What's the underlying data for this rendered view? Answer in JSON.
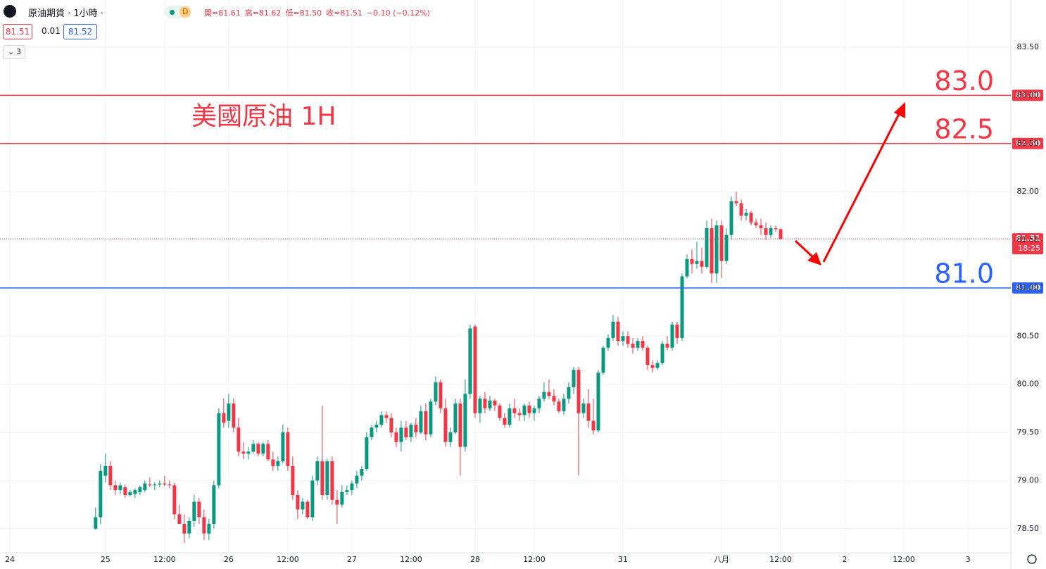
{
  "chart_data": {
    "type": "candlestick",
    "header": {
      "symbol": "原油期貨 · 1小時 ·",
      "badge": "D",
      "ohlc": [
        "開=81.61",
        "高=81.62",
        "低=81.50",
        "收=81.51",
        "−0.10 (−0.12%)"
      ],
      "bid": "81.51",
      "spread": "0.01",
      "ask": "81.52",
      "count": "3"
    },
    "annotation": "美國原油 1H",
    "up_color": "#089981",
    "down_color": "#f23645",
    "xlim": [
      -19.4,
      185.7
    ],
    "xticks": [
      {
        "value": -17.4,
        "label": "24"
      },
      {
        "value": 2,
        "label": "25"
      },
      {
        "value": 14,
        "label": "12:00"
      },
      {
        "value": 27,
        "label": "26"
      },
      {
        "value": 39,
        "label": "12:00"
      },
      {
        "value": 52,
        "label": "27"
      },
      {
        "value": 64,
        "label": "12:00"
      },
      {
        "value": 77,
        "label": "28"
      },
      {
        "value": 89,
        "label": "12:00"
      },
      {
        "value": 107,
        "label": "31"
      },
      {
        "value": 127,
        "label": "八月"
      },
      {
        "value": 139,
        "label": "12:00"
      },
      {
        "value": 152,
        "label": "2"
      },
      {
        "value": 164,
        "label": "12:00"
      },
      {
        "value": 177,
        "label": "3"
      }
    ],
    "ylim": [
      78.25,
      83.99
    ],
    "yticks": [
      {
        "value": 78.5,
        "label": "78.50"
      },
      {
        "value": 79,
        "label": "79.00"
      },
      {
        "value": 79.5,
        "label": "79.50"
      },
      {
        "value": 80,
        "label": "80.00"
      },
      {
        "value": 80.5,
        "label": "80.50"
      },
      {
        "value": 81,
        "label": "81.00"
      },
      {
        "value": 81.5,
        "label": "81.50"
      },
      {
        "value": 82,
        "label": "82.00"
      },
      {
        "value": 82.5,
        "label": "82.50"
      },
      {
        "value": 83,
        "label": "83.00"
      },
      {
        "value": 83.5,
        "label": "83.50"
      }
    ],
    "hlines": [
      {
        "value": 83,
        "label": "83.0",
        "tag": "83.00",
        "color": "#f23645"
      },
      {
        "value": 82.5,
        "label": "82.5",
        "tag": "82.50",
        "color": "#f23645"
      },
      {
        "value": 81,
        "label": "81.0",
        "tag": "81.00",
        "color": "#2962ff"
      }
    ],
    "last_price": {
      "value": 81.51,
      "label": "81.51",
      "countdown": "18:25"
    },
    "candles": [
      [
        78.5,
        78.72,
        78.49,
        78.62
      ],
      [
        78.62,
        79.17,
        78.55,
        79.1
      ],
      [
        79.05,
        79.28,
        78.98,
        79.15
      ],
      [
        79.15,
        79.2,
        78.9,
        78.95
      ],
      [
        78.95,
        79.0,
        78.85,
        78.9
      ],
      [
        78.9,
        78.98,
        78.86,
        78.95
      ],
      [
        78.93,
        78.96,
        78.82,
        78.85
      ],
      [
        78.85,
        78.9,
        78.83,
        78.88
      ],
      [
        78.86,
        78.92,
        78.82,
        78.9
      ],
      [
        78.88,
        78.95,
        78.85,
        78.93
      ],
      [
        78.9,
        79.0,
        78.88,
        78.97
      ],
      [
        78.96,
        79.03,
        78.93,
        78.95
      ],
      [
        78.95,
        78.98,
        78.9,
        78.96
      ],
      [
        78.96,
        79.0,
        78.93,
        78.97
      ],
      [
        78.97,
        79.05,
        78.94,
        78.96
      ],
      [
        78.96,
        79.0,
        78.92,
        78.95
      ],
      [
        78.95,
        78.98,
        78.6,
        78.65
      ],
      [
        78.65,
        78.75,
        78.55,
        78.55
      ],
      [
        78.55,
        78.65,
        78.35,
        78.45
      ],
      [
        78.45,
        78.62,
        78.4,
        78.58
      ],
      [
        78.58,
        78.85,
        78.52,
        78.78
      ],
      [
        78.78,
        78.82,
        78.55,
        78.62
      ],
      [
        78.62,
        78.7,
        78.38,
        78.45
      ],
      [
        78.45,
        78.6,
        78.38,
        78.55
      ],
      [
        78.55,
        79.0,
        78.5,
        78.95
      ],
      [
        78.95,
        79.75,
        78.92,
        79.7
      ],
      [
        79.7,
        79.85,
        79.55,
        79.6
      ],
      [
        79.62,
        79.9,
        79.55,
        79.8
      ],
      [
        79.8,
        79.85,
        79.5,
        79.55
      ],
      [
        79.55,
        79.65,
        79.25,
        79.3
      ],
      [
        79.3,
        79.4,
        79.22,
        79.28
      ],
      [
        79.28,
        79.35,
        79.22,
        79.3
      ],
      [
        79.3,
        79.42,
        79.28,
        79.38
      ],
      [
        79.38,
        79.4,
        79.25,
        79.28
      ],
      [
        79.28,
        79.4,
        79.25,
        79.38
      ],
      [
        79.38,
        79.42,
        79.2,
        79.22
      ],
      [
        79.22,
        79.3,
        79.1,
        79.15
      ],
      [
        79.15,
        79.25,
        79.1,
        79.2
      ],
      [
        79.2,
        79.58,
        79.18,
        79.5
      ],
      [
        79.5,
        79.55,
        79.1,
        79.15
      ],
      [
        79.15,
        79.25,
        78.8,
        78.85
      ],
      [
        78.85,
        78.9,
        78.6,
        78.7
      ],
      [
        78.7,
        78.82,
        78.65,
        78.78
      ],
      [
        78.78,
        78.8,
        78.6,
        78.62
      ],
      [
        78.62,
        79.05,
        78.58,
        79.0
      ],
      [
        79.0,
        79.25,
        78.95,
        79.2
      ],
      [
        79.2,
        79.78,
        78.8,
        78.85
      ],
      [
        78.85,
        79.22,
        78.8,
        79.2
      ],
      [
        79.2,
        79.25,
        78.75,
        78.8
      ],
      [
        78.8,
        78.9,
        78.55,
        78.75
      ],
      [
        78.75,
        78.95,
        78.72,
        78.88
      ],
      [
        78.88,
        78.95,
        78.85,
        78.9
      ],
      [
        78.9,
        79.0,
        78.85,
        78.97
      ],
      [
        78.97,
        79.1,
        78.92,
        79.05
      ],
      [
        79.05,
        79.15,
        79.0,
        79.12
      ],
      [
        79.12,
        79.5,
        79.1,
        79.45
      ],
      [
        79.45,
        79.58,
        79.42,
        79.55
      ],
      [
        79.55,
        79.62,
        79.5,
        79.58
      ],
      [
        79.58,
        79.72,
        79.55,
        79.68
      ],
      [
        79.68,
        79.72,
        79.6,
        79.65
      ],
      [
        79.65,
        79.7,
        79.45,
        79.5
      ],
      [
        79.5,
        79.55,
        79.35,
        79.4
      ],
      [
        79.4,
        79.62,
        79.3,
        79.55
      ],
      [
        79.55,
        79.62,
        79.42,
        79.45
      ],
      [
        79.45,
        79.6,
        79.4,
        79.58
      ],
      [
        79.58,
        79.65,
        79.45,
        79.5
      ],
      [
        79.5,
        79.78,
        79.48,
        79.72
      ],
      [
        79.72,
        79.8,
        79.42,
        79.48
      ],
      [
        79.48,
        79.85,
        79.45,
        79.82
      ],
      [
        79.82,
        80.08,
        79.78,
        80.02
      ],
      [
        80.02,
        80.05,
        79.7,
        79.75
      ],
      [
        79.75,
        79.85,
        79.35,
        79.4
      ],
      [
        79.4,
        79.55,
        79.35,
        79.5
      ],
      [
        79.5,
        79.85,
        79.48,
        79.8
      ],
      [
        79.8,
        79.85,
        79.05,
        79.35
      ],
      [
        79.35,
        80.05,
        79.3,
        79.9
      ],
      [
        79.9,
        80.62,
        79.85,
        80.58
      ],
      [
        80.6,
        80.62,
        79.65,
        79.7
      ],
      [
        79.7,
        79.88,
        79.6,
        79.85
      ],
      [
        79.85,
        79.92,
        79.7,
        79.75
      ],
      [
        79.75,
        79.88,
        79.72,
        79.83
      ],
      [
        79.83,
        79.85,
        79.72,
        79.78
      ],
      [
        79.78,
        79.8,
        79.62,
        79.65
      ],
      [
        79.65,
        79.7,
        79.55,
        79.58
      ],
      [
        79.58,
        79.8,
        79.55,
        79.75
      ],
      [
        79.75,
        79.85,
        79.65,
        79.7
      ],
      [
        79.7,
        79.75,
        79.62,
        79.68
      ],
      [
        79.68,
        79.8,
        79.62,
        79.78
      ],
      [
        79.78,
        79.82,
        79.65,
        79.7
      ],
      [
        79.7,
        79.78,
        79.62,
        79.75
      ],
      [
        79.75,
        79.88,
        79.7,
        79.85
      ],
      [
        79.85,
        80.02,
        79.82,
        79.92
      ],
      [
        79.92,
        80.05,
        79.85,
        79.88
      ],
      [
        79.88,
        79.95,
        79.78,
        79.82
      ],
      [
        79.82,
        79.85,
        79.7,
        79.72
      ],
      [
        79.72,
        79.9,
        79.68,
        79.85
      ],
      [
        79.85,
        80.02,
        79.8,
        79.97
      ],
      [
        79.97,
        80.18,
        79.9,
        80.15
      ],
      [
        80.15,
        80.18,
        79.05,
        79.7
      ],
      [
        79.7,
        79.85,
        79.65,
        79.8
      ],
      [
        79.8,
        79.95,
        79.55,
        79.62
      ],
      [
        79.62,
        79.85,
        79.48,
        79.52
      ],
      [
        79.52,
        80.15,
        79.5,
        80.12
      ],
      [
        80.12,
        80.4,
        80.1,
        80.38
      ],
      [
        80.38,
        80.52,
        80.35,
        80.48
      ],
      [
        80.48,
        80.72,
        80.45,
        80.65
      ],
      [
        80.65,
        80.7,
        80.4,
        80.45
      ],
      [
        80.45,
        80.55,
        80.4,
        80.5
      ],
      [
        80.5,
        80.55,
        80.38,
        80.42
      ],
      [
        80.42,
        80.48,
        80.32,
        80.38
      ],
      [
        80.38,
        80.48,
        80.35,
        80.45
      ],
      [
        80.45,
        80.5,
        80.35,
        80.38
      ],
      [
        80.38,
        80.4,
        80.15,
        80.2
      ],
      [
        80.2,
        80.25,
        80.12,
        80.17
      ],
      [
        80.17,
        80.25,
        80.15,
        80.22
      ],
      [
        80.22,
        80.45,
        80.2,
        80.42
      ],
      [
        80.42,
        80.5,
        80.35,
        80.38
      ],
      [
        80.38,
        80.65,
        80.35,
        80.62
      ],
      [
        80.62,
        80.65,
        80.42,
        80.48
      ],
      [
        80.48,
        81.15,
        80.45,
        81.12
      ],
      [
        81.12,
        81.35,
        81.1,
        81.3
      ],
      [
        81.3,
        81.4,
        81.15,
        81.25
      ],
      [
        81.25,
        81.48,
        81.2,
        81.28
      ],
      [
        81.28,
        81.42,
        81.15,
        81.22
      ],
      [
        81.22,
        81.7,
        81.2,
        81.62
      ],
      [
        81.62,
        81.72,
        81.05,
        81.15
      ],
      [
        81.15,
        81.7,
        81.05,
        81.65
      ],
      [
        81.65,
        81.7,
        81.1,
        81.28
      ],
      [
        81.28,
        81.62,
        81.25,
        81.55
      ],
      [
        81.55,
        81.95,
        81.5,
        81.9
      ],
      [
        81.9,
        82.0,
        81.85,
        81.88
      ],
      [
        81.88,
        81.92,
        81.7,
        81.75
      ],
      [
        81.75,
        81.82,
        81.7,
        81.78
      ],
      [
        81.78,
        81.8,
        81.65,
        81.68
      ],
      [
        81.68,
        81.72,
        81.62,
        81.65
      ],
      [
        81.65,
        81.72,
        81.55,
        81.62
      ],
      [
        81.62,
        81.68,
        81.5,
        81.55
      ],
      [
        81.55,
        81.65,
        81.52,
        81.62
      ],
      [
        81.62,
        81.65,
        81.58,
        81.61
      ],
      [
        81.61,
        81.62,
        81.5,
        81.51
      ]
    ]
  }
}
